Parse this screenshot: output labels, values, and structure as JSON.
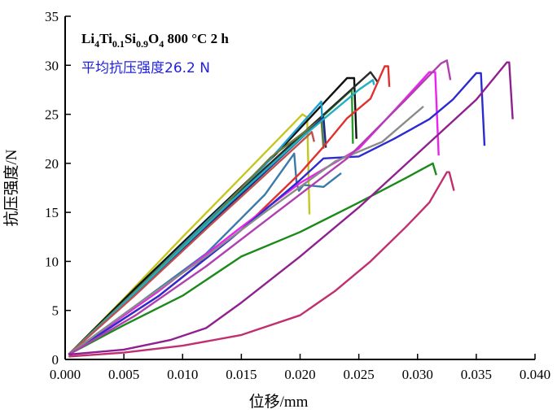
{
  "chart_data": {
    "type": "line",
    "title": "",
    "xlabel": "位移/mm",
    "ylabel": "抗压强度/N",
    "xlim": [
      0,
      0.04
    ],
    "ylim": [
      0,
      35
    ],
    "xticks": [
      "0.000",
      "0.005",
      "0.010",
      "0.015",
      "0.020",
      "0.025",
      "0.030",
      "0.035",
      "0.040"
    ],
    "yticks": [
      "0",
      "5",
      "10",
      "15",
      "20",
      "25",
      "30",
      "35"
    ],
    "grid": false,
    "annotations": {
      "sample": {
        "parts": [
          {
            "t": "Li",
            "sub": false
          },
          {
            "t": "4",
            "sub": true
          },
          {
            "t": "Ti",
            "sub": false
          },
          {
            "t": "0.1",
            "sub": true
          },
          {
            "t": "Si",
            "sub": false
          },
          {
            "t": "0.9",
            "sub": true
          },
          {
            "t": "O",
            "sub": false
          },
          {
            "t": "4",
            "sub": true
          },
          {
            "t": "  800 °C 2 h",
            "sub": false
          }
        ]
      },
      "average": "平均抗压强度26.2 N",
      "average_color": "#1f1fe0"
    },
    "series": [
      {
        "color": "#c6c61e",
        "points": [
          [
            0.0003,
            0.5
          ],
          [
            0.005,
            6.2
          ],
          [
            0.01,
            12.5
          ],
          [
            0.015,
            18.6
          ],
          [
            0.0202,
            25.0
          ],
          [
            0.0206,
            24.7
          ],
          [
            0.0208,
            14.8
          ]
        ]
      },
      {
        "color": "#2a9a2a",
        "points": [
          [
            0.0003,
            0.5
          ],
          [
            0.006,
            7.2
          ],
          [
            0.012,
            14.0
          ],
          [
            0.018,
            20.5
          ],
          [
            0.0244,
            27.5
          ],
          [
            0.0245,
            22.0
          ]
        ]
      },
      {
        "color": "#111111",
        "points": [
          [
            0.0003,
            0.5
          ],
          [
            0.006,
            7.3
          ],
          [
            0.012,
            14.2
          ],
          [
            0.018,
            21.0
          ],
          [
            0.024,
            28.7
          ],
          [
            0.0246,
            28.7
          ],
          [
            0.0248,
            22.5
          ]
        ]
      },
      {
        "color": "#2b2b2b",
        "points": [
          [
            0.0003,
            0.5
          ],
          [
            0.007,
            8.0
          ],
          [
            0.014,
            16.2
          ],
          [
            0.02,
            22.8
          ],
          [
            0.026,
            29.3
          ],
          [
            0.0266,
            28.3
          ]
        ]
      },
      {
        "color": "#1f9fcf",
        "points": [
          [
            0.0003,
            0.5
          ],
          [
            0.006,
            7.0
          ],
          [
            0.012,
            14.0
          ],
          [
            0.017,
            19.8
          ],
          [
            0.0218,
            26.3
          ],
          [
            0.022,
            21.8
          ]
        ]
      },
      {
        "color": "#6a7a3a",
        "points": [
          [
            0.0003,
            0.5
          ],
          [
            0.006,
            7.0
          ],
          [
            0.012,
            13.8
          ],
          [
            0.0175,
            20.6
          ],
          [
            0.0218,
            24.5
          ],
          [
            0.022,
            21.5
          ]
        ]
      },
      {
        "color": "#1f2a80",
        "points": [
          [
            0.0003,
            0.5
          ],
          [
            0.006,
            6.8
          ],
          [
            0.012,
            13.5
          ],
          [
            0.018,
            20.2
          ],
          [
            0.022,
            24.7
          ],
          [
            0.0222,
            21.6
          ]
        ]
      },
      {
        "color": "#20b0c0",
        "points": [
          [
            0.0003,
            0.5
          ],
          [
            0.007,
            8.0
          ],
          [
            0.014,
            16.0
          ],
          [
            0.02,
            22.5
          ],
          [
            0.025,
            27.5
          ],
          [
            0.0262,
            28.5
          ],
          [
            0.0263,
            28.0
          ]
        ]
      },
      {
        "color": "#c05050",
        "points": [
          [
            0.0003,
            0.5
          ],
          [
            0.006,
            6.6
          ],
          [
            0.012,
            13.3
          ],
          [
            0.018,
            19.9
          ],
          [
            0.021,
            23.2
          ],
          [
            0.0212,
            22.2
          ]
        ]
      },
      {
        "color": "#3a7aaa",
        "points": [
          [
            0.0003,
            0.5
          ],
          [
            0.006,
            5.5
          ],
          [
            0.012,
            10.8
          ],
          [
            0.017,
            16.8
          ],
          [
            0.0195,
            21.0
          ],
          [
            0.0197,
            18.0
          ],
          [
            0.0199,
            17.2
          ],
          [
            0.0203,
            17.8
          ],
          [
            0.022,
            17.6
          ],
          [
            0.0235,
            19.0
          ]
        ]
      },
      {
        "color": "#e03030",
        "points": [
          [
            0.0003,
            0.5
          ],
          [
            0.008,
            6.5
          ],
          [
            0.015,
            13.2
          ],
          [
            0.02,
            19.0
          ],
          [
            0.022,
            21.7
          ],
          [
            0.024,
            24.6
          ],
          [
            0.026,
            26.6
          ],
          [
            0.0272,
            29.9
          ],
          [
            0.0275,
            29.9
          ],
          [
            0.0276,
            27.8
          ]
        ]
      },
      {
        "color": "#ee22ee",
        "points": [
          [
            0.0003,
            0.5
          ],
          [
            0.008,
            7.0
          ],
          [
            0.015,
            13.5
          ],
          [
            0.02,
            18.0
          ],
          [
            0.025,
            21.5
          ],
          [
            0.0285,
            26.0
          ],
          [
            0.031,
            29.3
          ],
          [
            0.0315,
            29.3
          ],
          [
            0.0318,
            20.8
          ]
        ]
      },
      {
        "color": "#2b2bd0",
        "points": [
          [
            0.0003,
            0.5
          ],
          [
            0.008,
            6.5
          ],
          [
            0.014,
            12.2
          ],
          [
            0.02,
            18.3
          ],
          [
            0.022,
            20.5
          ],
          [
            0.025,
            20.7
          ],
          [
            0.028,
            22.5
          ],
          [
            0.031,
            24.5
          ],
          [
            0.033,
            26.5
          ],
          [
            0.035,
            29.2
          ],
          [
            0.0354,
            29.2
          ],
          [
            0.0357,
            21.8
          ]
        ]
      },
      {
        "color": "#8a8a8a",
        "points": [
          [
            0.0003,
            0.5
          ],
          [
            0.006,
            5.5
          ],
          [
            0.012,
            10.5
          ],
          [
            0.017,
            15.0
          ],
          [
            0.02,
            17.6
          ],
          [
            0.023,
            20.2
          ],
          [
            0.027,
            22.2
          ],
          [
            0.0305,
            25.8
          ]
        ]
      },
      {
        "color": "#1a8a1a",
        "points": [
          [
            0.0003,
            0.5
          ],
          [
            0.005,
            3.5
          ],
          [
            0.01,
            6.5
          ],
          [
            0.015,
            10.5
          ],
          [
            0.02,
            13.0
          ],
          [
            0.025,
            16.0
          ],
          [
            0.029,
            18.5
          ],
          [
            0.0313,
            20.0
          ],
          [
            0.0316,
            18.8
          ]
        ]
      },
      {
        "color": "#b040b0",
        "points": [
          [
            0.0003,
            0.5
          ],
          [
            0.006,
            4.5
          ],
          [
            0.012,
            9.5
          ],
          [
            0.018,
            15.0
          ],
          [
            0.024,
            20.5
          ],
          [
            0.029,
            26.5
          ],
          [
            0.032,
            30.2
          ],
          [
            0.0325,
            30.5
          ],
          [
            0.0328,
            28.5
          ]
        ]
      },
      {
        "color": "#902090",
        "points": [
          [
            0.0003,
            0.5
          ],
          [
            0.005,
            1.0
          ],
          [
            0.009,
            2.0
          ],
          [
            0.012,
            3.2
          ],
          [
            0.015,
            5.8
          ],
          [
            0.02,
            10.5
          ],
          [
            0.025,
            15.5
          ],
          [
            0.03,
            21.0
          ],
          [
            0.035,
            26.5
          ],
          [
            0.0376,
            30.3
          ],
          [
            0.0378,
            30.3
          ],
          [
            0.0381,
            24.5
          ]
        ]
      },
      {
        "color": "#c03070",
        "points": [
          [
            0.0003,
            0.3
          ],
          [
            0.005,
            0.7
          ],
          [
            0.01,
            1.4
          ],
          [
            0.015,
            2.5
          ],
          [
            0.02,
            4.5
          ],
          [
            0.023,
            7.0
          ],
          [
            0.026,
            10.0
          ],
          [
            0.029,
            13.5
          ],
          [
            0.031,
            16.0
          ],
          [
            0.0325,
            19.1
          ],
          [
            0.0327,
            19.1
          ],
          [
            0.0331,
            17.2
          ]
        ]
      }
    ]
  }
}
